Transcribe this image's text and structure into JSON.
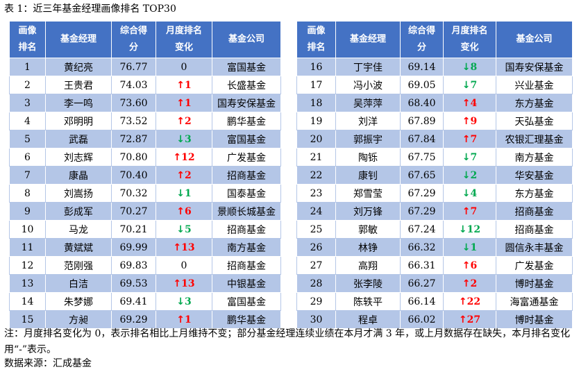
{
  "title": "表 1：近三年基金经理画像排名 TOP30",
  "headers": {
    "rank": [
      "画像",
      "排名"
    ],
    "manager": "基金经理",
    "score": [
      "综合得",
      "分"
    ],
    "change": [
      "月度排名",
      "变化"
    ],
    "company": "基金公司"
  },
  "left_rows": [
    {
      "rank": "1",
      "manager": "黄纪亮",
      "score": "76.77",
      "dir": "same",
      "change": "0",
      "company": "富国基金"
    },
    {
      "rank": "2",
      "manager": "王贵君",
      "score": "74.03",
      "dir": "up",
      "change": "1",
      "company": "长盛基金"
    },
    {
      "rank": "3",
      "manager": "李一鸣",
      "score": "73.60",
      "dir": "up",
      "change": "1",
      "company": "国寿安保基金"
    },
    {
      "rank": "4",
      "manager": "邓明明",
      "score": "73.52",
      "dir": "up",
      "change": "2",
      "company": "鹏华基金"
    },
    {
      "rank": "5",
      "manager": "武磊",
      "score": "72.87",
      "dir": "down",
      "change": "3",
      "company": "富国基金"
    },
    {
      "rank": "6",
      "manager": "刘志辉",
      "score": "70.80",
      "dir": "up",
      "change": "12",
      "company": "广发基金"
    },
    {
      "rank": "7",
      "manager": "康晶",
      "score": "70.40",
      "dir": "up",
      "change": "2",
      "company": "招商基金"
    },
    {
      "rank": "8",
      "manager": "刘嵩扬",
      "score": "70.32",
      "dir": "down",
      "change": "1",
      "company": "国泰基金"
    },
    {
      "rank": "9",
      "manager": "彭成军",
      "score": "70.27",
      "dir": "up",
      "change": "6",
      "company": "景顺长城基金"
    },
    {
      "rank": "10",
      "manager": "马龙",
      "score": "70.21",
      "dir": "down",
      "change": "5",
      "company": "招商基金"
    },
    {
      "rank": "11",
      "manager": "黄斌斌",
      "score": "69.99",
      "dir": "up",
      "change": "13",
      "company": "南方基金"
    },
    {
      "rank": "12",
      "manager": "范刚强",
      "score": "69.83",
      "dir": "same",
      "change": "0",
      "company": "招商基金"
    },
    {
      "rank": "13",
      "manager": "白洁",
      "score": "69.53",
      "dir": "up",
      "change": "13",
      "company": "中银基金"
    },
    {
      "rank": "14",
      "manager": "朱梦娜",
      "score": "69.41",
      "dir": "down",
      "change": "3",
      "company": "富国基金"
    },
    {
      "rank": "15",
      "manager": "方昶",
      "score": "69.29",
      "dir": "up",
      "change": "1",
      "company": "鹏华基金"
    }
  ],
  "right_rows": [
    {
      "rank": "16",
      "manager": "丁宇佳",
      "score": "69.14",
      "dir": "down",
      "change": "8",
      "company": "国寿安保基金"
    },
    {
      "rank": "17",
      "manager": "冯小波",
      "score": "69.05",
      "dir": "down",
      "change": "7",
      "company": "兴业基金"
    },
    {
      "rank": "18",
      "manager": "吴萍萍",
      "score": "68.40",
      "dir": "up",
      "change": "4",
      "company": "东方基金"
    },
    {
      "rank": "19",
      "manager": "刘洋",
      "score": "67.89",
      "dir": "up",
      "change": "9",
      "company": "天弘基金"
    },
    {
      "rank": "20",
      "manager": "郭振宇",
      "score": "67.84",
      "dir": "up",
      "change": "7",
      "company": "农银汇理基金"
    },
    {
      "rank": "21",
      "manager": "陶铄",
      "score": "67.75",
      "dir": "down",
      "change": "7",
      "company": "南方基金"
    },
    {
      "rank": "22",
      "manager": "康钊",
      "score": "67.65",
      "dir": "down",
      "change": "2",
      "company": "华安基金"
    },
    {
      "rank": "23",
      "manager": "郑雪莹",
      "score": "67.29",
      "dir": "down",
      "change": "4",
      "company": "东方基金"
    },
    {
      "rank": "24",
      "manager": "刘万锋",
      "score": "67.29",
      "dir": "up",
      "change": "7",
      "company": "招商基金"
    },
    {
      "rank": "25",
      "manager": "郭敏",
      "score": "67.24",
      "dir": "down",
      "change": "12",
      "company": "招商基金"
    },
    {
      "rank": "26",
      "manager": "林铮",
      "score": "66.32",
      "dir": "down",
      "change": "1",
      "company": "圆信永丰基金"
    },
    {
      "rank": "27",
      "manager": "高翔",
      "score": "66.31",
      "dir": "up",
      "change": "6",
      "company": "广发基金"
    },
    {
      "rank": "28",
      "manager": "张李陵",
      "score": "66.27",
      "dir": "up",
      "change": "2",
      "company": "博时基金"
    },
    {
      "rank": "29",
      "manager": "陈轶平",
      "score": "66.14",
      "dir": "up",
      "change": "22",
      "company": "海富通基金"
    },
    {
      "rank": "30",
      "manager": "程卓",
      "score": "66.02",
      "dir": "up",
      "change": "27",
      "company": "博时基金"
    }
  ],
  "note": "注：月度排名变化为 0，表示排名相比上月维持不变；部分基金经理连续业绩在本月才满 3 年，或上月数据存在缺失，本月排名变化用“-”表示。",
  "source": "数据来源：汇成基金",
  "colors": {
    "header_bg": "#4472c4",
    "odd_row_bg": "#b4c6e7",
    "up": "#ff0000",
    "down": "#00a84f"
  }
}
